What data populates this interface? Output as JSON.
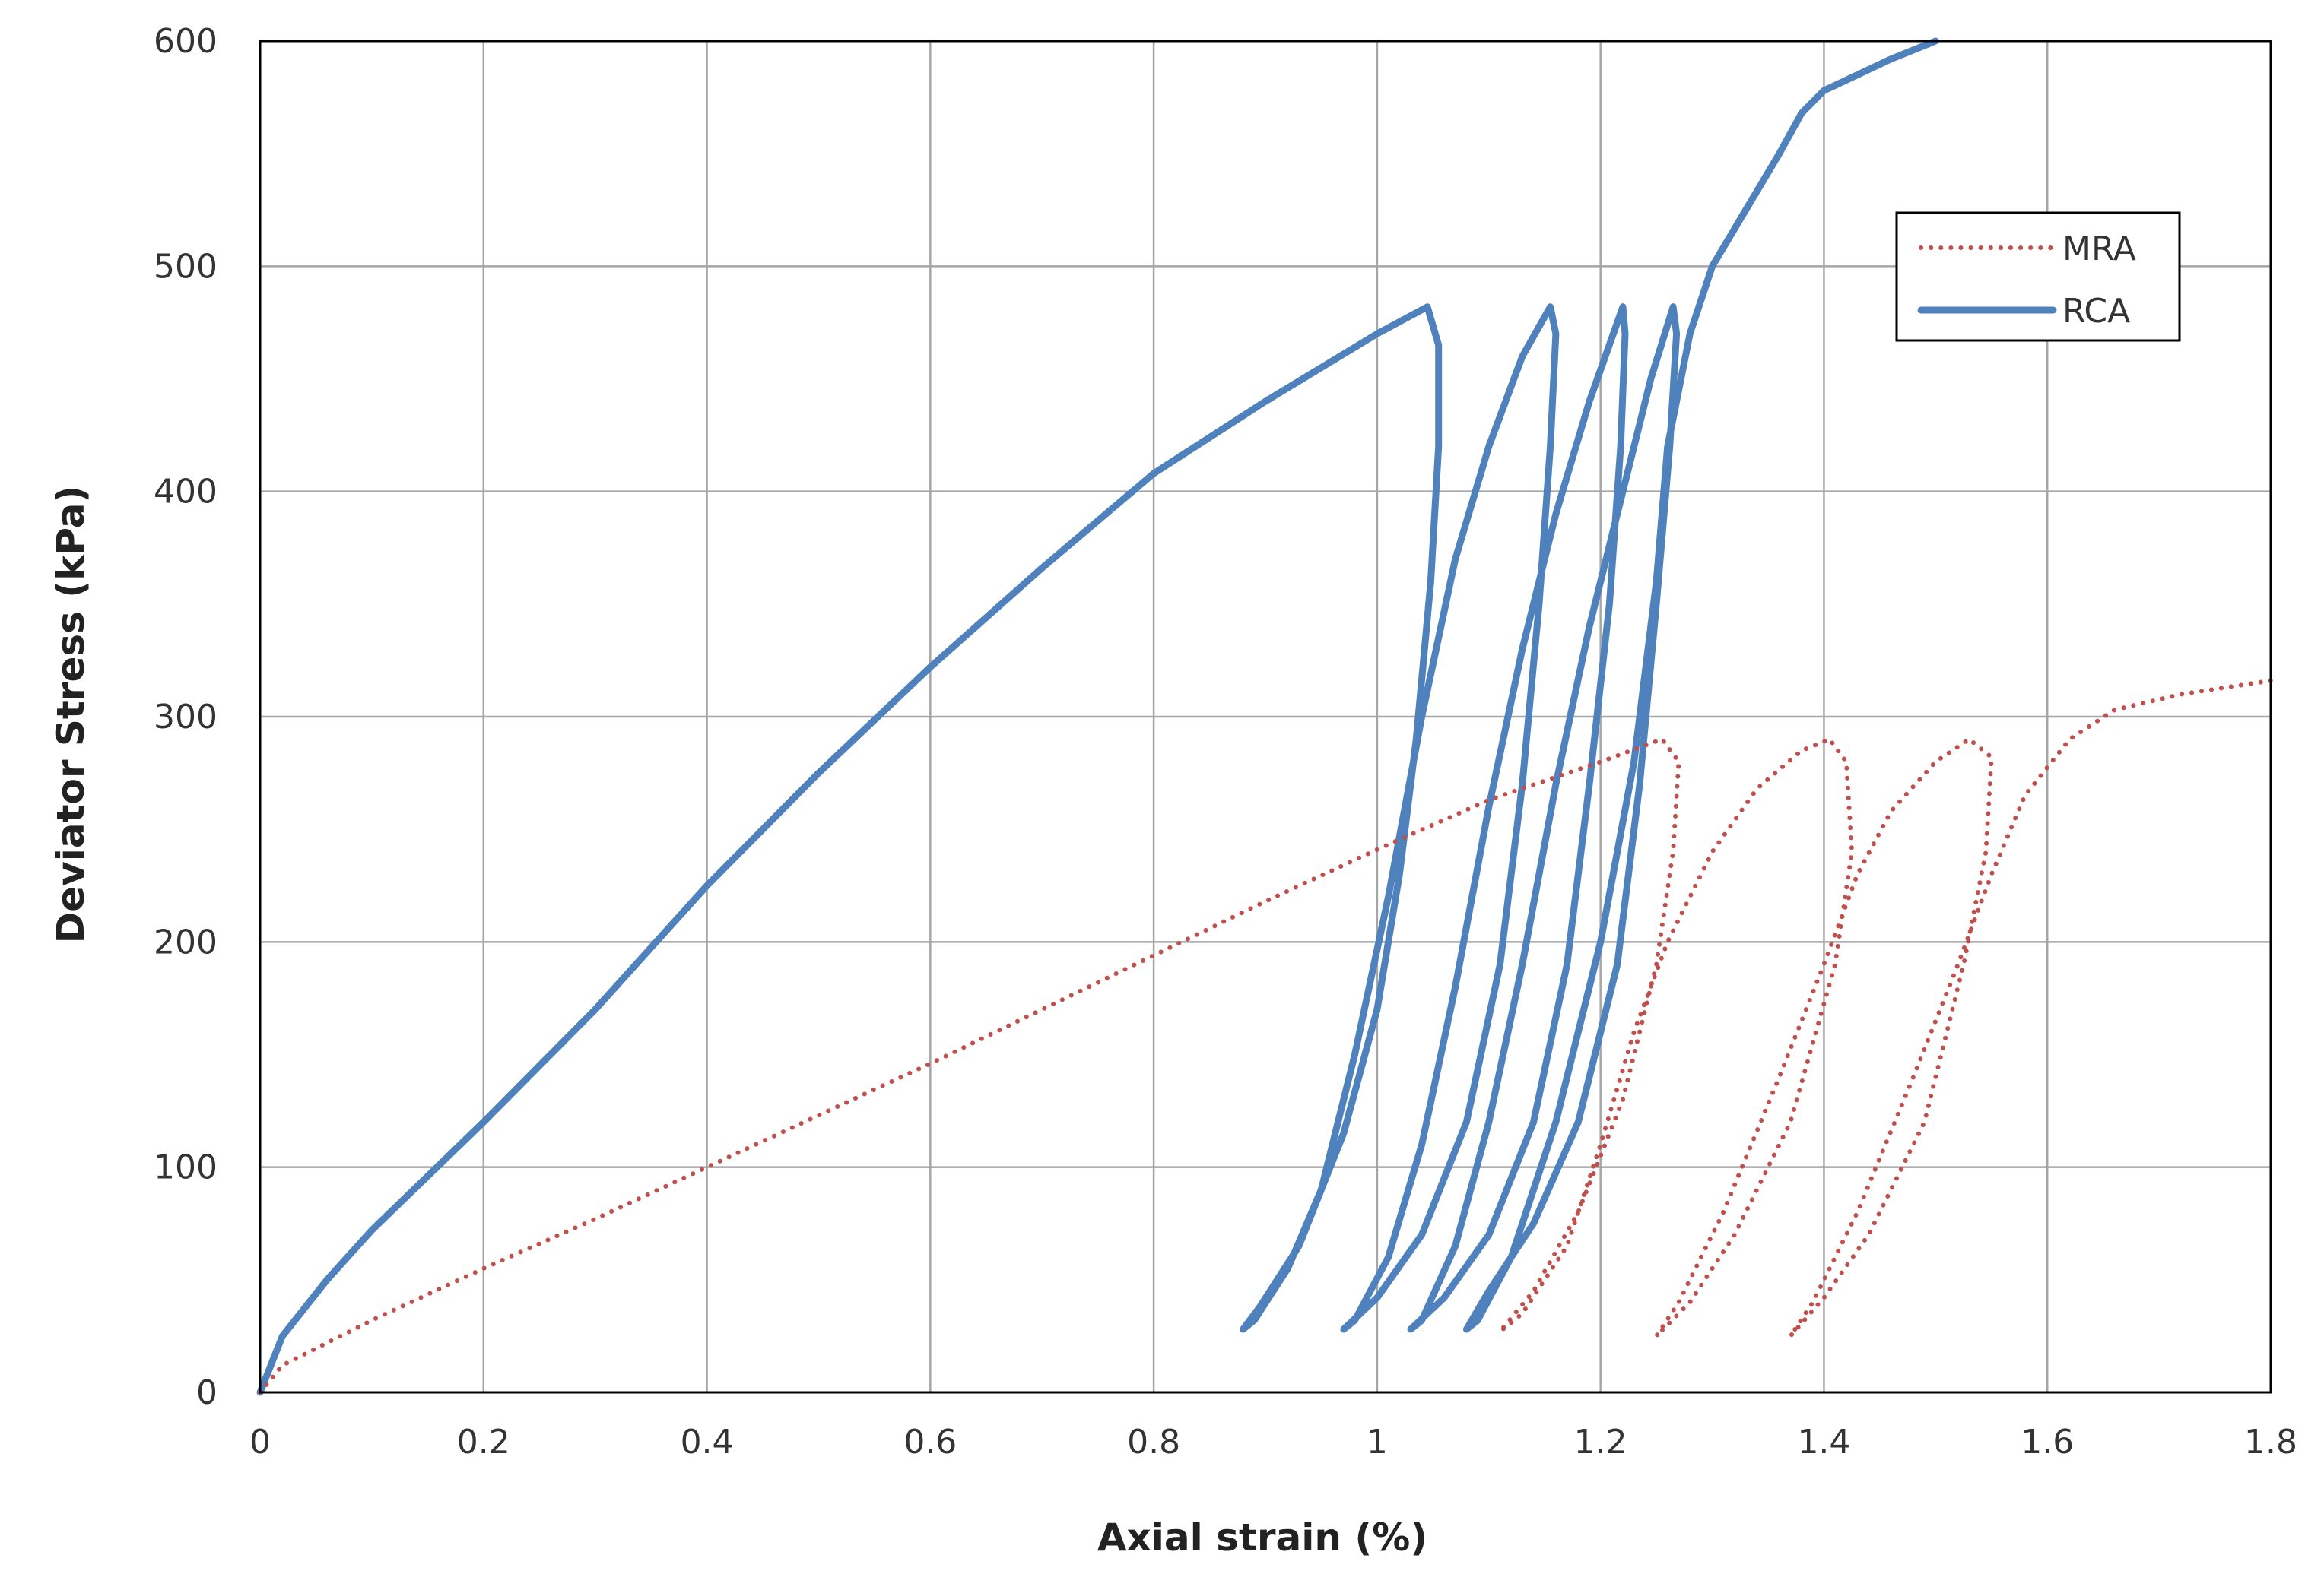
{
  "chart_data": {
    "type": "line",
    "title": "",
    "xlabel": "Axial strain (%)",
    "ylabel": "Deviator Stress (kPa)",
    "xlim": [
      0,
      1.8
    ],
    "ylim": [
      0,
      600
    ],
    "xticks": [
      0,
      0.2,
      0.4,
      0.6,
      0.8,
      1,
      1.2,
      1.4,
      1.6,
      1.8
    ],
    "xtick_labels": [
      "0",
      "0.2",
      "0.4",
      "0.6",
      "0.8",
      "1",
      "1.2",
      "1.4",
      "1.6",
      "1.8"
    ],
    "yticks": [
      0,
      100,
      200,
      300,
      400,
      500,
      600
    ],
    "ytick_labels": [
      "0",
      "100",
      "200",
      "300",
      "400",
      "500",
      "600"
    ],
    "grid": true,
    "legend": "top-right",
    "series": [
      {
        "name": "MRA",
        "style": "dotted",
        "color": "#c0504d",
        "points": [
          [
            0,
            0
          ],
          [
            0.02,
            12
          ],
          [
            0.1,
            32
          ],
          [
            0.2,
            55
          ],
          [
            0.3,
            77
          ],
          [
            0.4,
            100
          ],
          [
            0.5,
            123
          ],
          [
            0.6,
            146
          ],
          [
            0.7,
            170
          ],
          [
            0.8,
            194
          ],
          [
            0.9,
            218
          ],
          [
            1.0,
            241
          ],
          [
            1.1,
            263
          ],
          [
            1.2,
            280
          ],
          [
            1.255,
            290
          ],
          [
            1.27,
            280
          ],
          [
            1.265,
            240
          ],
          [
            1.25,
            190
          ],
          [
            1.22,
            130
          ],
          [
            1.18,
            80
          ],
          [
            1.14,
            45
          ],
          [
            1.11,
            27
          ],
          [
            1.13,
            35
          ],
          [
            1.17,
            65
          ],
          [
            1.2,
            110
          ],
          [
            1.23,
            160
          ],
          [
            1.26,
            200
          ],
          [
            1.3,
            240
          ],
          [
            1.34,
            268
          ],
          [
            1.38,
            285
          ],
          [
            1.405,
            290
          ],
          [
            1.42,
            280
          ],
          [
            1.425,
            240
          ],
          [
            1.41,
            190
          ],
          [
            1.37,
            120
          ],
          [
            1.32,
            70
          ],
          [
            1.28,
            40
          ],
          [
            1.25,
            25
          ],
          [
            1.27,
            40
          ],
          [
            1.31,
            80
          ],
          [
            1.36,
            140
          ],
          [
            1.4,
            190
          ],
          [
            1.43,
            230
          ],
          [
            1.46,
            258
          ],
          [
            1.5,
            280
          ],
          [
            1.53,
            290
          ],
          [
            1.55,
            282
          ],
          [
            1.545,
            240
          ],
          [
            1.525,
            190
          ],
          [
            1.49,
            120
          ],
          [
            1.44,
            70
          ],
          [
            1.4,
            42
          ],
          [
            1.37,
            25
          ],
          [
            1.39,
            40
          ],
          [
            1.43,
            80
          ],
          [
            1.48,
            140
          ],
          [
            1.52,
            190
          ],
          [
            1.55,
            230
          ],
          [
            1.58,
            265
          ],
          [
            1.62,
            290
          ],
          [
            1.66,
            303
          ],
          [
            1.72,
            310
          ],
          [
            1.8,
            316
          ]
        ]
      },
      {
        "name": "RCA",
        "style": "solid",
        "color": "#4f81bd",
        "points": [
          [
            0,
            0
          ],
          [
            0.02,
            25
          ],
          [
            0.06,
            50
          ],
          [
            0.1,
            72
          ],
          [
            0.2,
            120
          ],
          [
            0.3,
            170
          ],
          [
            0.4,
            225
          ],
          [
            0.5,
            275
          ],
          [
            0.6,
            322
          ],
          [
            0.7,
            366
          ],
          [
            0.8,
            408
          ],
          [
            0.9,
            440
          ],
          [
            1.0,
            470
          ],
          [
            1.045,
            482
          ],
          [
            1.055,
            465
          ],
          [
            1.055,
            420
          ],
          [
            1.048,
            360
          ],
          [
            1.035,
            290
          ],
          [
            1.02,
            230
          ],
          [
            1.0,
            170
          ],
          [
            0.97,
            115
          ],
          [
            0.93,
            65
          ],
          [
            0.895,
            38
          ],
          [
            0.88,
            28
          ],
          [
            0.89,
            32
          ],
          [
            0.92,
            55
          ],
          [
            0.95,
            90
          ],
          [
            0.98,
            150
          ],
          [
            1.01,
            220
          ],
          [
            1.04,
            300
          ],
          [
            1.07,
            370
          ],
          [
            1.1,
            420
          ],
          [
            1.13,
            460
          ],
          [
            1.155,
            482
          ],
          [
            1.16,
            470
          ],
          [
            1.155,
            420
          ],
          [
            1.145,
            350
          ],
          [
            1.13,
            270
          ],
          [
            1.11,
            190
          ],
          [
            1.08,
            120
          ],
          [
            1.04,
            70
          ],
          [
            1.0,
            42
          ],
          [
            0.97,
            28
          ],
          [
            0.98,
            32
          ],
          [
            1.01,
            60
          ],
          [
            1.04,
            110
          ],
          [
            1.07,
            180
          ],
          [
            1.1,
            260
          ],
          [
            1.13,
            330
          ],
          [
            1.16,
            390
          ],
          [
            1.19,
            440
          ],
          [
            1.22,
            482
          ],
          [
            1.222,
            470
          ],
          [
            1.218,
            420
          ],
          [
            1.208,
            350
          ],
          [
            1.19,
            270
          ],
          [
            1.17,
            190
          ],
          [
            1.14,
            120
          ],
          [
            1.1,
            70
          ],
          [
            1.06,
            42
          ],
          [
            1.03,
            28
          ],
          [
            1.04,
            32
          ],
          [
            1.07,
            65
          ],
          [
            1.1,
            120
          ],
          [
            1.13,
            190
          ],
          [
            1.16,
            270
          ],
          [
            1.19,
            340
          ],
          [
            1.22,
            400
          ],
          [
            1.245,
            450
          ],
          [
            1.265,
            482
          ],
          [
            1.268,
            470
          ],
          [
            1.262,
            420
          ],
          [
            1.25,
            350
          ],
          [
            1.235,
            270
          ],
          [
            1.215,
            190
          ],
          [
            1.18,
            120
          ],
          [
            1.14,
            75
          ],
          [
            1.1,
            45
          ],
          [
            1.08,
            28
          ],
          [
            1.09,
            32
          ],
          [
            1.12,
            60
          ],
          [
            1.16,
            120
          ],
          [
            1.2,
            200
          ],
          [
            1.23,
            280
          ],
          [
            1.25,
            360
          ],
          [
            1.26,
            420
          ],
          [
            1.28,
            470
          ],
          [
            1.3,
            500
          ],
          [
            1.33,
            525
          ],
          [
            1.36,
            550
          ],
          [
            1.38,
            568
          ],
          [
            1.4,
            578
          ],
          [
            1.43,
            585
          ],
          [
            1.46,
            592
          ],
          [
            1.5,
            600
          ]
        ]
      }
    ]
  }
}
